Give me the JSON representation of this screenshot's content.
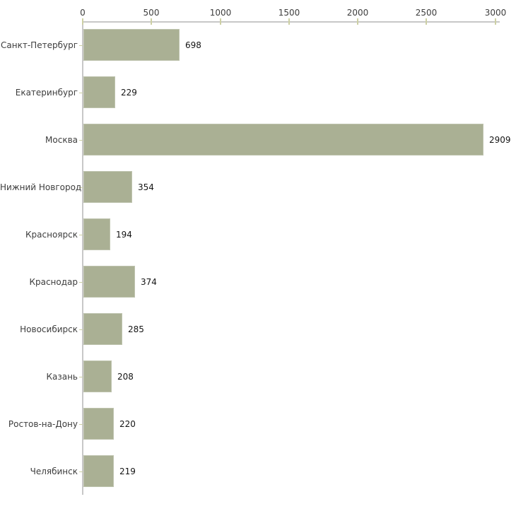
{
  "chart_data": {
    "type": "bar",
    "orientation": "horizontal",
    "title": "",
    "categories": [
      "Санкт-Петербург",
      "Екатеринбург",
      "Москва",
      "Нижний Новгород",
      "Красноярск",
      "Краснодар",
      "Новосибирск",
      "Казань",
      "Ростов-на-Дону",
      "Челябинск"
    ],
    "values": [
      698,
      229,
      2909,
      354,
      194,
      374,
      285,
      208,
      220,
      219
    ],
    "x_ticks": [
      "0",
      "500",
      "1000",
      "1500",
      "2000",
      "2500",
      "3000"
    ],
    "xlim": [
      0,
      3000
    ],
    "grid": "off",
    "legend": "none",
    "axis_position": "top",
    "colors": {
      "bar": "#aab094",
      "axis_line": "#c8c8c8",
      "tick_mark": "#cdd0a4",
      "category_label": "#3d3d3d",
      "value_label": "#141414",
      "tick_label": "#3d3d3d",
      "background": "#ffffff"
    }
  }
}
